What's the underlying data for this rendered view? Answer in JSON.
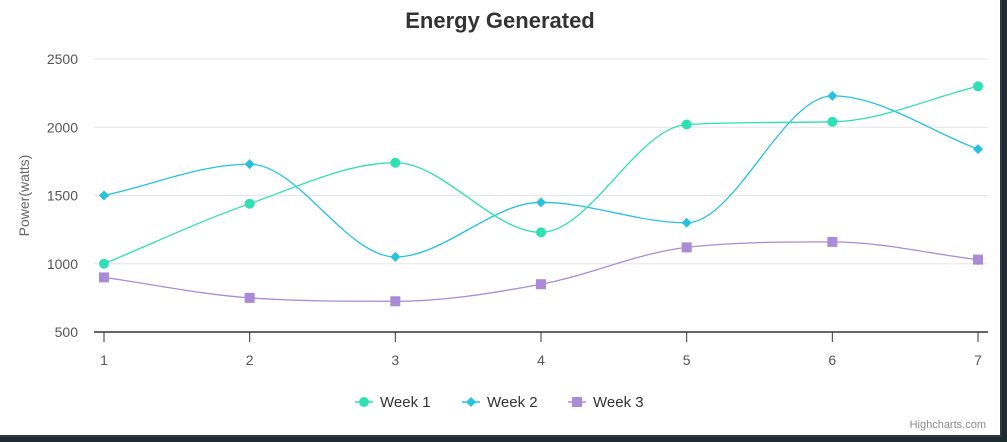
{
  "chart_data": {
    "type": "line",
    "title": "Energy Generated",
    "subtitle": "",
    "xlabel": "",
    "ylabel": "Power(watts)",
    "x": [
      1,
      2,
      3,
      4,
      5,
      6,
      7
    ],
    "x_ticks": [
      "1",
      "2",
      "3",
      "4",
      "5",
      "6",
      "7"
    ],
    "ylim": [
      500,
      2500
    ],
    "y_ticks": [
      "500",
      "1000",
      "1500",
      "2000",
      "2500"
    ],
    "grid": true,
    "legend": "bottom-center",
    "series": [
      {
        "name": "Week 1",
        "color": "#2ee0b3",
        "marker": "circle",
        "values": [
          1000,
          1440,
          1740,
          1230,
          2020,
          2040,
          2300
        ]
      },
      {
        "name": "Week 2",
        "color": "#25c2e0",
        "marker": "diamond",
        "values": [
          1500,
          1730,
          1050,
          1450,
          1300,
          2230,
          1840
        ]
      },
      {
        "name": "Week 3",
        "color": "#a98bd8",
        "marker": "square",
        "values": [
          900,
          750,
          725,
          850,
          1120,
          1160,
          1030
        ]
      }
    ]
  },
  "credits": "Highcharts.com"
}
